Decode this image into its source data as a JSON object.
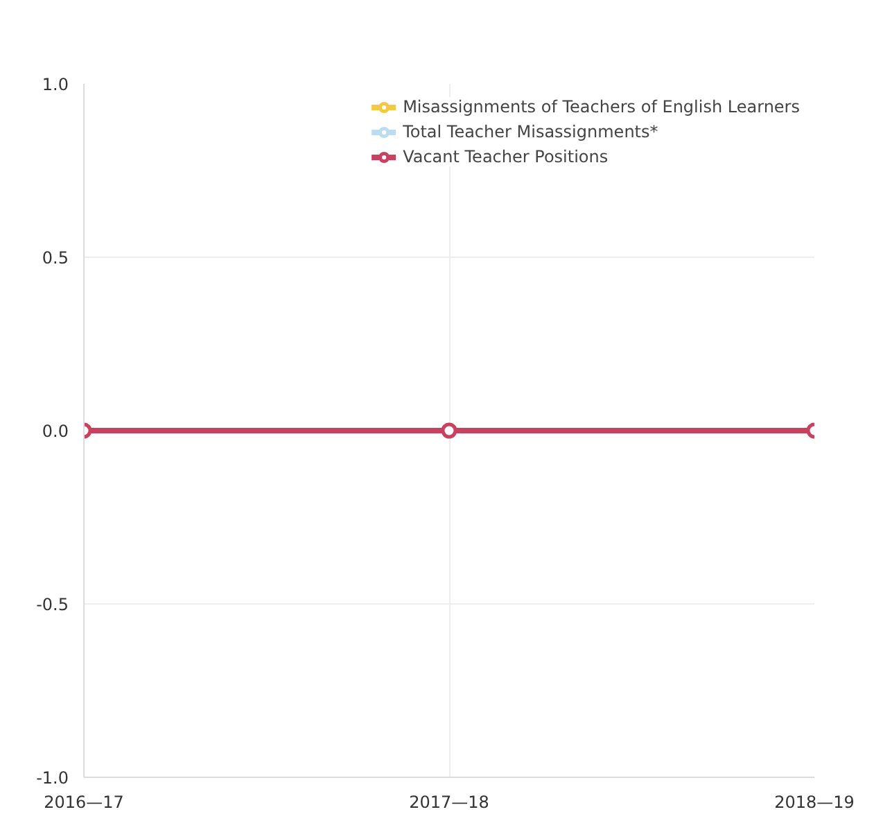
{
  "chart_data": {
    "type": "line",
    "categories": [
      "2016—17",
      "2017—18",
      "2018—19"
    ],
    "series": [
      {
        "name": "Misassignments of Teachers of English Learners",
        "color": "#f5c842",
        "values": [
          null,
          null,
          null
        ]
      },
      {
        "name": "Total Teacher Misassignments*",
        "color": "#bcdcf0",
        "values": [
          null,
          null,
          null
        ]
      },
      {
        "name": "Vacant Teacher Positions",
        "color": "#c8415f",
        "values": [
          0,
          0,
          0
        ]
      }
    ],
    "ylim": [
      -1.0,
      1.0
    ],
    "yticks": [
      {
        "value": -1,
        "label": "-1.0"
      },
      {
        "value": -0.5,
        "label": "-0.5"
      },
      {
        "value": 0,
        "label": "0.0"
      },
      {
        "value": 0.5,
        "label": "0.5"
      },
      {
        "value": 1,
        "label": "1.0"
      }
    ],
    "grid": true,
    "legend": "top right",
    "marker": "circle"
  }
}
